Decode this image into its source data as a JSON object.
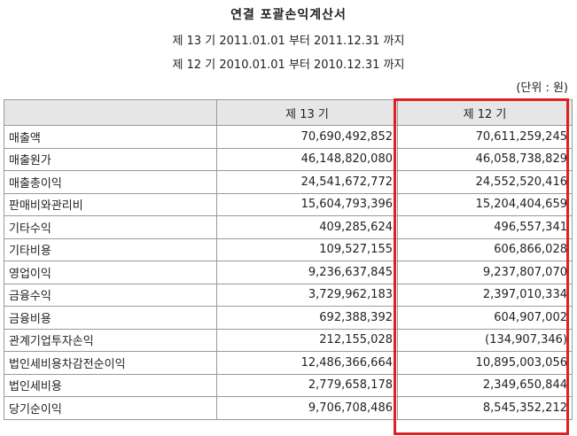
{
  "document": {
    "title": "연결 포괄손익계산서",
    "period_current": "제 13 기 2011.01.01 부터 2011.12.31 까지",
    "period_previous": "제 12 기 2010.01.01 부터 2010.12.31 까지",
    "unit": "(단위 : 원)"
  },
  "table": {
    "headers": [
      "",
      "제 13 기",
      "제 12 기"
    ],
    "rows": [
      {
        "label": "매출액",
        "current": "70,690,492,852",
        "previous": "70,611,259,245"
      },
      {
        "label": "매출원가",
        "current": "46,148,820,080",
        "previous": "46,058,738,829"
      },
      {
        "label": "매출총이익",
        "current": "24,541,672,772",
        "previous": "24,552,520,416"
      },
      {
        "label": "판매비와관리비",
        "current": "15,604,793,396",
        "previous": "15,204,404,659"
      },
      {
        "label": "기타수익",
        "current": "409,285,624",
        "previous": "496,557,341"
      },
      {
        "label": "기타비용",
        "current": "109,527,155",
        "previous": "606,866,028"
      },
      {
        "label": "영업이익",
        "current": "9,236,637,845",
        "previous": "9,237,807,070"
      },
      {
        "label": "금융수익",
        "current": "3,729,962,183",
        "previous": "2,397,010,334"
      },
      {
        "label": "금융비용",
        "current": "692,388,392",
        "previous": "604,907,002"
      },
      {
        "label": "관계기업투자손익",
        "current": "212,155,028",
        "previous": "(134,907,346)"
      },
      {
        "label": "법인세비용차감전순이익",
        "current": "12,486,366,664",
        "previous": "10,895,003,056"
      },
      {
        "label": "법인세비용",
        "current": "2,779,658,178",
        "previous": "2,349,650,844"
      },
      {
        "label": "당기순이익",
        "current": "9,706,708,486",
        "previous": "8,545,352,212"
      }
    ]
  },
  "highlight_color": "#e02020",
  "header_bg": "#e6e6e6"
}
